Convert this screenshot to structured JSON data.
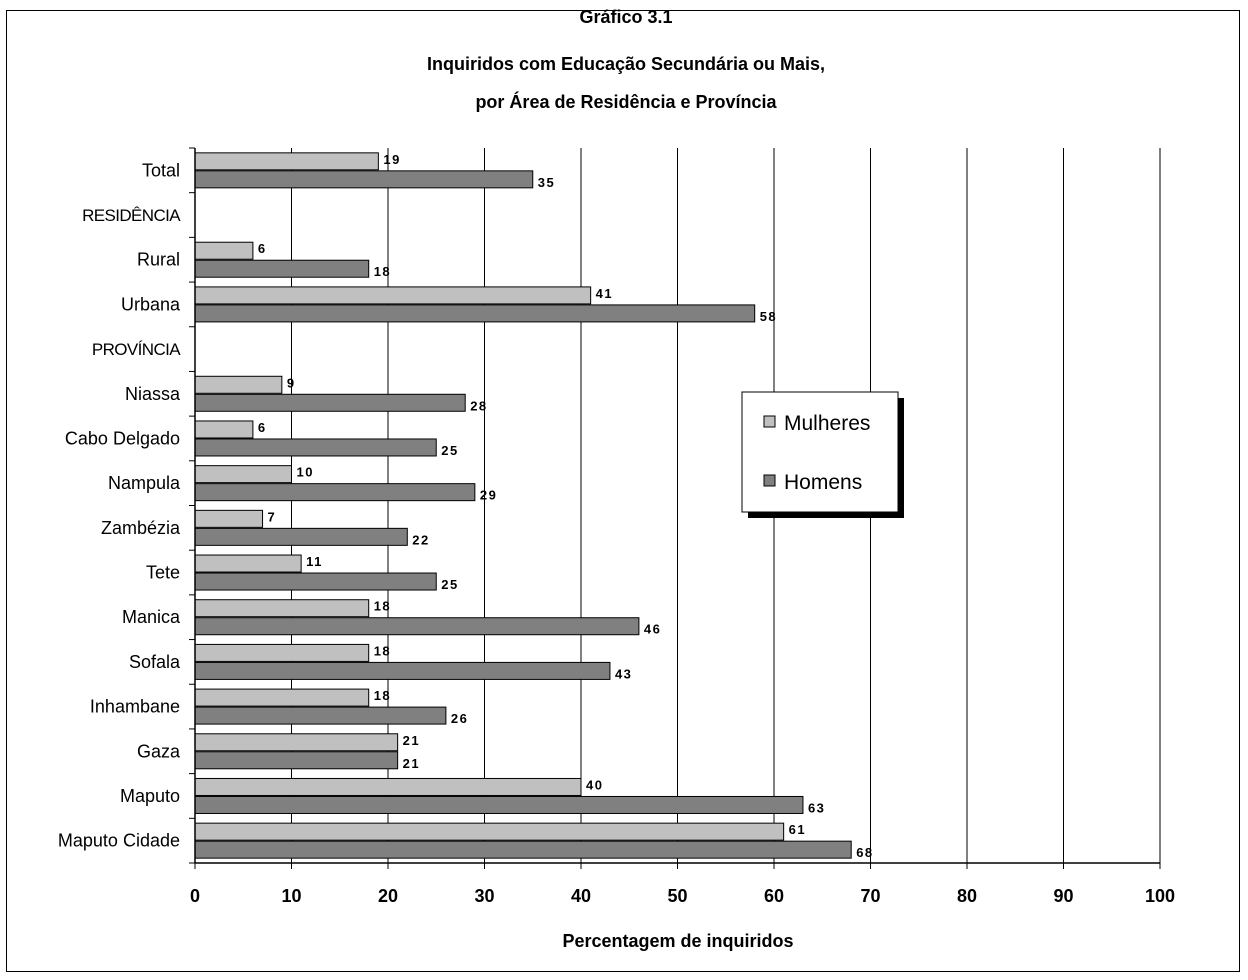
{
  "chart_data": {
    "type": "bar",
    "orientation": "horizontal",
    "title_lines": [
      "Gráfico 3.1",
      "Inquiridos com Educação Secundária ou Mais,",
      "por Área  de Residência e Província"
    ],
    "xlabel": "Percentagem de inquiridos",
    "ylabel": "",
    "xlim": [
      0,
      100
    ],
    "xticks": [
      "0",
      "10",
      "20",
      "30",
      "40",
      "50",
      "60",
      "70",
      "80",
      "90",
      "100"
    ],
    "grid": "vertical gridlines",
    "legend_position": "right-center",
    "categories": [
      "Total",
      "RESIDÊNCIA",
      "Rural",
      "Urbana",
      "PROVÍNCIA",
      "Niassa",
      "Cabo Delgado",
      "Nampula",
      "Zambézia",
      "Tete",
      "Manica",
      "Sofala",
      "Inhambane",
      "Gaza",
      "Maputo",
      "Maputo Cidade"
    ],
    "series": [
      {
        "name": "Mulheres",
        "color": "#c0c0c0",
        "values": [
          19,
          null,
          6,
          41,
          null,
          9,
          6,
          10,
          7,
          11,
          18,
          18,
          18,
          21,
          40,
          61
        ],
        "labels": [
          "19",
          "",
          "6",
          "41",
          "",
          "9",
          "6",
          "10",
          "7",
          "11",
          "18",
          "18",
          "18",
          "21",
          "40",
          "61"
        ]
      },
      {
        "name": "Homens",
        "color": "#808080",
        "values": [
          35,
          null,
          18,
          58,
          null,
          28,
          25,
          29,
          22,
          25,
          46,
          43,
          26,
          21,
          63,
          68
        ],
        "labels": [
          "35",
          "",
          "18",
          "58",
          "",
          "28",
          "25",
          "29",
          "22",
          "25",
          "46",
          "43",
          "26",
          "21",
          "63",
          "68"
        ]
      }
    ]
  }
}
